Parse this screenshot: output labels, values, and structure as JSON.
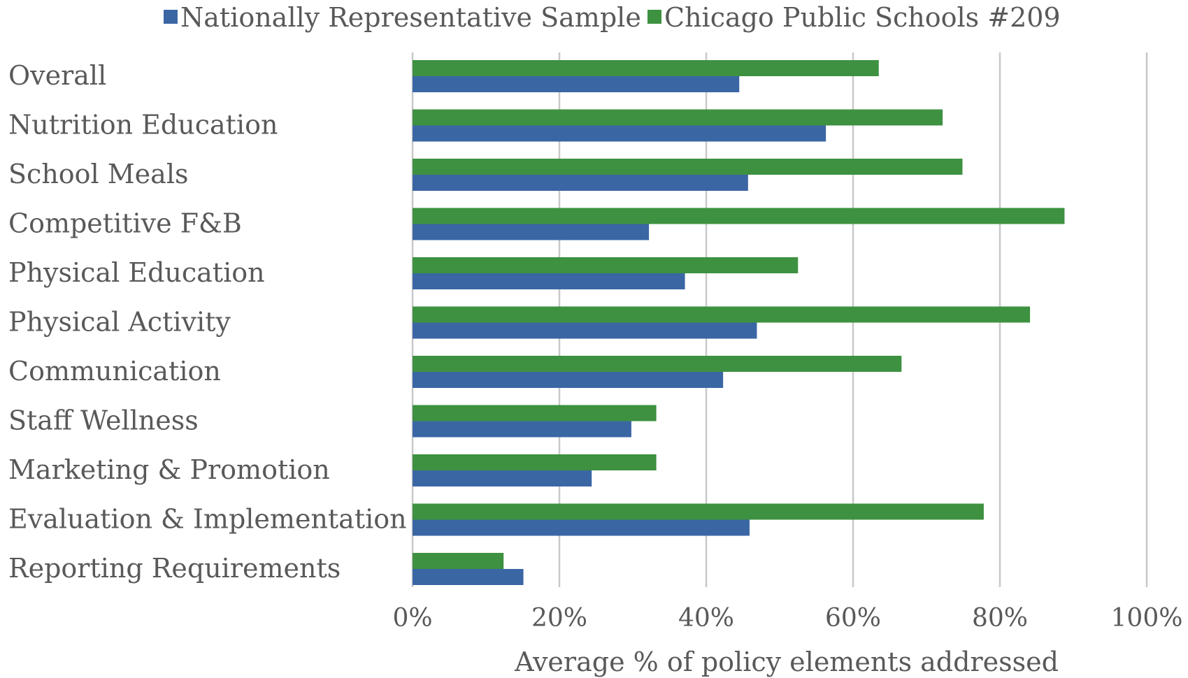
{
  "chart_data": {
    "type": "bar",
    "orientation": "horizontal",
    "categories": [
      "Overall",
      "Nutrition Education",
      "School Meals",
      "Competitive F&B",
      "Physical Education",
      "Physical Activity",
      "Communication",
      "Staff Wellness",
      "Marketing & Promotion",
      "Evaluation & Implementation",
      "Reporting Requirements"
    ],
    "series": [
      {
        "name": "Nationally Representative Sample",
        "color": "#3b66a4",
        "values": [
          44.5,
          56.3,
          45.7,
          32.2,
          37.1,
          46.9,
          42.3,
          29.8,
          24.4,
          45.9,
          15.1
        ]
      },
      {
        "name": "Chicago Public Schools #209",
        "color": "#3d9140",
        "values": [
          63.5,
          72.2,
          74.9,
          88.8,
          52.5,
          84.1,
          66.6,
          33.2,
          33.2,
          77.8,
          12.4
        ]
      }
    ],
    "xlim": [
      0,
      100
    ],
    "x_ticks": [
      "0%",
      "20%",
      "40%",
      "60%",
      "80%",
      "100%"
    ],
    "xlabel": "Average % of policy elements addressed",
    "ylabel": "",
    "title": "",
    "grid": true,
    "legend_position": "top"
  }
}
